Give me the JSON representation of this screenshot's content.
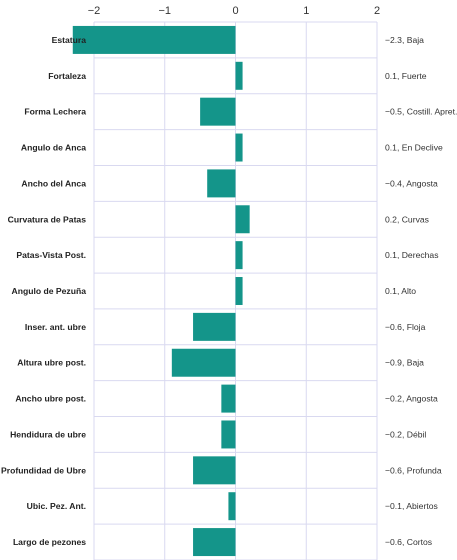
{
  "chart_data": {
    "type": "bar",
    "orientation": "horizontal",
    "categories": [
      "Estatura",
      "Fortaleza",
      "Forma Lechera",
      "Angulo de Anca",
      "Ancho del Anca",
      "Curvatura de Patas",
      "Patas-Vista Post.",
      "Angulo de Pezuña",
      "Inser. ant. ubre",
      "Altura ubre post.",
      "Ancho ubre post.",
      "Hendidura de ubre",
      "Profundidad de Ubre",
      "Ubic. Pez. Ant.",
      "Largo de pezones"
    ],
    "values": [
      -2.3,
      0.1,
      -0.5,
      0.1,
      -0.4,
      0.2,
      0.1,
      0.1,
      -0.6,
      -0.9,
      -0.2,
      -0.2,
      -0.6,
      -0.1,
      -0.6
    ],
    "value_labels": [
      "−2.3, Baja",
      "0.1, Fuerte",
      "−0.5, Costill. Apret.",
      "0.1, En Declive",
      "−0.4, Angosta",
      "0.2, Curvas",
      "0.1, Derechas",
      "0.1, Alto",
      "−0.6, Floja",
      "−0.9, Baja",
      "−0.2, Angosta",
      "−0.2, Débil",
      "−0.6, Profunda",
      "−0.1, Abiertos",
      "−0.6, Cortos"
    ],
    "x_ticks": [
      -2,
      -1,
      0,
      1,
      2
    ],
    "x_tick_labels": [
      "−2",
      "−1",
      "0",
      "1",
      "2"
    ],
    "xlim": [
      -2.0,
      2.0
    ],
    "grid": true,
    "bar_color": "#14958a",
    "grid_color": "#d9d9f0"
  }
}
